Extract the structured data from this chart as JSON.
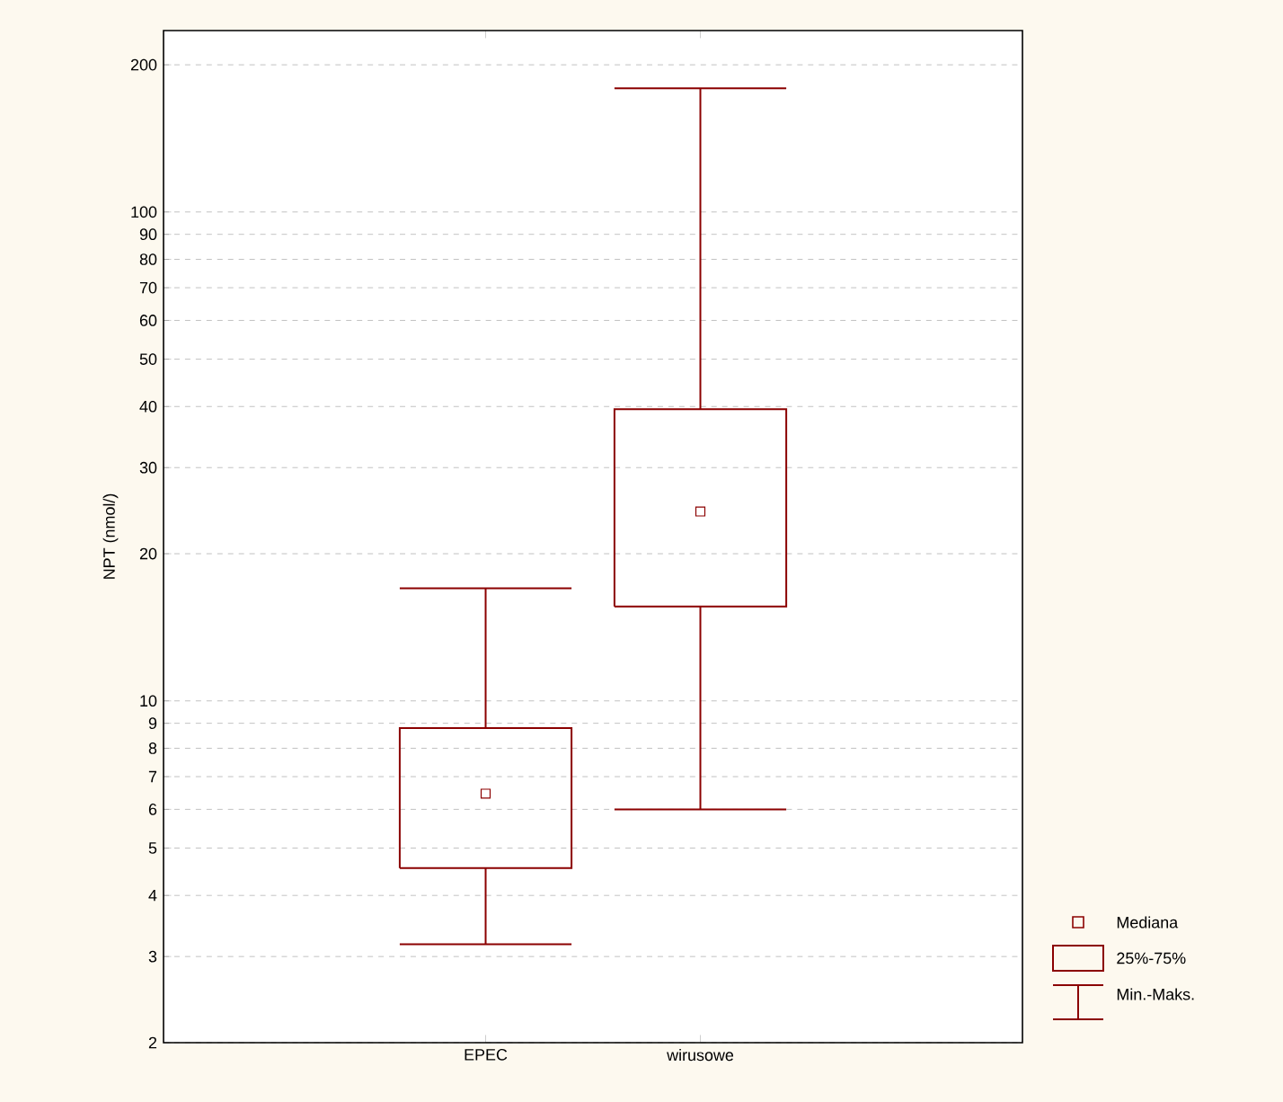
{
  "chart_data": {
    "type": "box",
    "ylabel": "NPT (nmol/)",
    "categories": [
      "EPEC",
      "wirusowe"
    ],
    "boxes": [
      {
        "low": 3.18,
        "q1": 4.55,
        "median": 6.46,
        "q3": 8.8,
        "high": 17.0
      },
      {
        "low": 6.0,
        "q1": 15.6,
        "median": 24.4,
        "q3": 39.5,
        "high": 179
      }
    ],
    "color": "#8b0000",
    "log": true,
    "ylim": [
      2,
      235
    ],
    "yticks": [
      2,
      3,
      4,
      5,
      6,
      7,
      8,
      9,
      10,
      20,
      30,
      40,
      50,
      60,
      70,
      80,
      90,
      100,
      200
    ],
    "grid": "y",
    "marker": "square",
    "annotations": [
      "Mediana",
      "25%-75%",
      "Min.-Maks."
    ]
  }
}
